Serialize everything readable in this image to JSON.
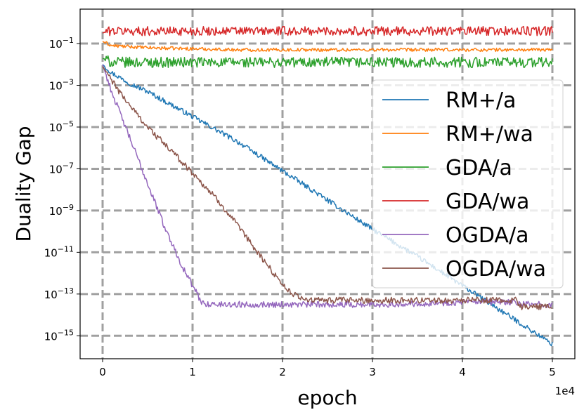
{
  "chart_data": {
    "type": "line",
    "title": "",
    "xlabel": "epoch",
    "ylabel": "Duality Gap",
    "x_offset_text": "1e4",
    "xlim": [
      -0.25,
      5.25
    ],
    "xticks": [
      {
        "value": 0,
        "label": "0"
      },
      {
        "value": 1,
        "label": "1"
      },
      {
        "value": 2,
        "label": "2"
      },
      {
        "value": 3,
        "label": "3"
      },
      {
        "value": 4,
        "label": "4"
      },
      {
        "value": 5,
        "label": "5"
      }
    ],
    "yscale": "log",
    "ylim_log10": [
      -16.1,
      0.65
    ],
    "yticks": [
      {
        "exp": -1,
        "base": "10",
        "sup": "−1"
      },
      {
        "exp": -3,
        "base": "10",
        "sup": "−3"
      },
      {
        "exp": -5,
        "base": "10",
        "sup": "−5"
      },
      {
        "exp": -7,
        "base": "10",
        "sup": "−7"
      },
      {
        "exp": -9,
        "base": "10",
        "sup": "−9"
      },
      {
        "exp": -11,
        "base": "10",
        "sup": "−11"
      },
      {
        "exp": -13,
        "base": "10",
        "sup": "−13"
      },
      {
        "exp": -15,
        "base": "10",
        "sup": "−15"
      }
    ],
    "grid": true,
    "legend_position": "right",
    "series": [
      {
        "name": "RM+/a",
        "color": "#1f77b4",
        "noise": 0.12,
        "x": [
          0,
          0.1,
          0.3,
          0.5,
          1.0,
          1.5,
          2.0,
          2.5,
          3.0,
          3.5,
          4.0,
          4.5,
          5.0
        ],
        "log10y": [
          -2.0,
          -2.4,
          -2.9,
          -3.3,
          -4.5,
          -5.7,
          -7.1,
          -8.5,
          -9.9,
          -11.2,
          -12.6,
          -14.0,
          -15.4
        ]
      },
      {
        "name": "RM+/wa",
        "color": "#ff7f0e",
        "noise": 0.08,
        "x": [
          0,
          0.1,
          0.5,
          1.0,
          1.5,
          2.0,
          2.5,
          3.0,
          3.5,
          4.0,
          4.5,
          5.0
        ],
        "log10y": [
          -0.9,
          -1.1,
          -1.2,
          -1.25,
          -1.3,
          -1.3,
          -1.3,
          -1.3,
          -1.3,
          -1.3,
          -1.3,
          -1.3
        ]
      },
      {
        "name": "GDA/a",
        "color": "#2ca02c",
        "noise": 0.25,
        "x": [
          0,
          0.1,
          0.5,
          1.0,
          2.0,
          3.0,
          4.0,
          5.0
        ],
        "log10y": [
          -1.7,
          -1.9,
          -1.9,
          -1.9,
          -1.9,
          -1.9,
          -1.9,
          -1.9
        ]
      },
      {
        "name": "GDA/wa",
        "color": "#d62728",
        "noise": 0.22,
        "x": [
          0,
          0.05,
          0.5,
          1.0,
          2.0,
          3.0,
          4.0,
          5.0
        ],
        "log10y": [
          -0.5,
          -0.4,
          -0.4,
          -0.4,
          -0.4,
          -0.4,
          -0.4,
          -0.4
        ]
      },
      {
        "name": "OGDA/a",
        "color": "#9467bd",
        "noise": 0.15,
        "x": [
          0,
          0.1,
          0.3,
          0.5,
          0.7,
          0.9,
          1.1,
          1.2,
          2.0,
          3.0,
          4.0,
          4.6,
          4.65,
          5.0
        ],
        "log10y": [
          -2.0,
          -3.3,
          -5.5,
          -7.7,
          -9.9,
          -11.8,
          -13.4,
          -13.5,
          -13.5,
          -13.5,
          -13.4,
          -13.4,
          -13.5,
          -13.5
        ]
      },
      {
        "name": "OGDA/wa",
        "color": "#8c564b",
        "noise": 0.15,
        "x": [
          0,
          0.2,
          0.5,
          0.8,
          1.0,
          1.3,
          1.6,
          1.9,
          2.1,
          2.3,
          2.5,
          3.0,
          3.5,
          4.0,
          4.5,
          4.6,
          4.65,
          5.0
        ],
        "log10y": [
          -2.1,
          -3.4,
          -5.0,
          -6.3,
          -7.2,
          -8.6,
          -10.3,
          -12.0,
          -13.0,
          -13.3,
          -13.3,
          -13.3,
          -13.3,
          -13.3,
          -13.3,
          -13.3,
          -13.6,
          -13.6
        ]
      }
    ]
  }
}
